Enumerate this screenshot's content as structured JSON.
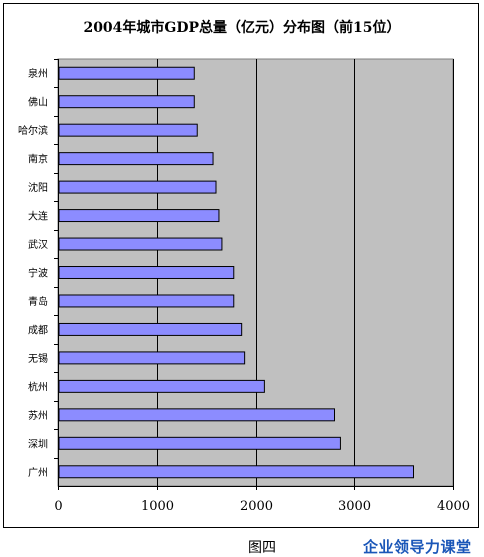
{
  "chart_data": {
    "type": "bar",
    "orientation": "horizontal",
    "title": "2004年城市GDP总量（亿元）分布图（前15位）",
    "categories": [
      "泉州",
      "佛山",
      "哈尔滨",
      "南京",
      "沈阳",
      "大连",
      "武汉",
      "宁波",
      "青岛",
      "成都",
      "无锡",
      "杭州",
      "苏州",
      "深圳",
      "广州"
    ],
    "values": [
      1380,
      1380,
      1410,
      1570,
      1600,
      1630,
      1660,
      1780,
      1780,
      1860,
      1890,
      2090,
      2800,
      2860,
      3600
    ],
    "xlim": [
      0,
      4000
    ],
    "xticks": [
      0,
      1000,
      2000,
      3000,
      4000
    ],
    "xlabel": "",
    "ylabel": "",
    "grid": true,
    "legend": "none",
    "colors": {
      "bar": "#8c8cff",
      "plot_background": "#c0c0c0",
      "gridline": "#000000"
    }
  },
  "caption": "图四",
  "brand": "企业领导力课堂"
}
